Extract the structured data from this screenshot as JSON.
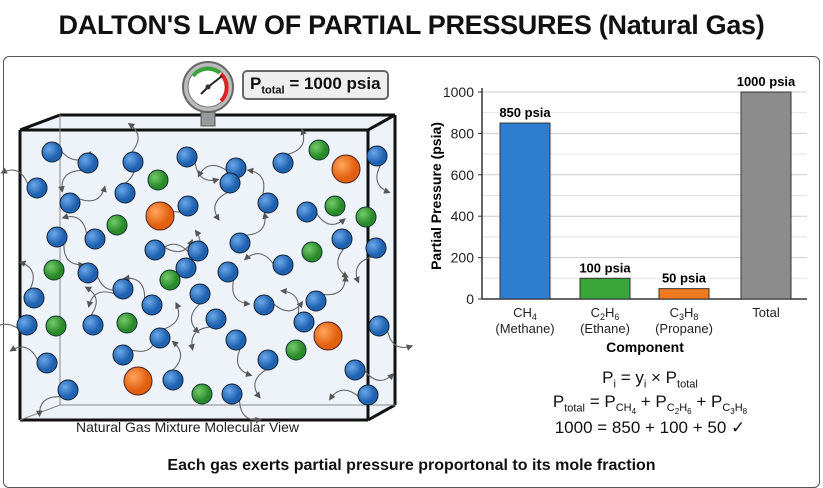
{
  "title": "DALTON'S LAW OF PARTIAL PRESSURES (Natural Gas)",
  "gauge": {
    "label_p": "P",
    "label_sub": "total",
    "label_value": "= 1000 psia"
  },
  "caption": "Natural Gas Mixture Molecular View",
  "footer": "Each gas exerts partial pressure proportonal to its mole fraction",
  "colors": {
    "methane": "#2f7dd1",
    "ethane": "#3aa63a",
    "propane": "#f07a20",
    "total": "#8c8c8c"
  },
  "equations": {
    "line1": {
      "p": "P",
      "i": "i",
      "eq": " = y",
      "i2": "i",
      "times": " × P",
      "total": "total"
    },
    "line2": {
      "p": "P",
      "total": "total",
      "eq": " = P",
      "s1a": "CH",
      "s1b": "4",
      "plus1": " + P",
      "s2a": "C",
      "s2b": "2",
      "s2c": "H",
      "s2d": "6",
      "plus2": " + P",
      "s3a": "C",
      "s3b": "3",
      "s3c": "H",
      "s3d": "8"
    },
    "line3": "1000 = 850 + 100 + 50 ✓"
  },
  "chart_data": {
    "type": "bar",
    "categories": [
      {
        "formula": "CH",
        "sub": "4",
        "formula2": "",
        "sub2": "",
        "name": "(Methane)"
      },
      {
        "formula": "C",
        "sub": "2",
        "formula2": "H",
        "sub2": "6",
        "name": "(Ethane)"
      },
      {
        "formula": "C",
        "sub": "3",
        "formula2": "H",
        "sub2": "8",
        "name": "(Propane)"
      },
      {
        "formula": "Total",
        "sub": "",
        "formula2": "",
        "sub2": "",
        "name": ""
      }
    ],
    "values": [
      850,
      100,
      50,
      1000
    ],
    "data_labels": [
      "850 psia",
      "100 psia",
      "50 psia",
      "1000 psia"
    ],
    "bar_colors": [
      "#2f7dd1",
      "#3aa63a",
      "#f07a20",
      "#8c8c8c"
    ],
    "xlabel": "Component",
    "ylabel": "Partial Pressure (psia)",
    "ylim": [
      0,
      1000
    ],
    "yticks": [
      "0",
      "200",
      "400",
      "600",
      "800",
      "1000"
    ],
    "grid": true
  }
}
